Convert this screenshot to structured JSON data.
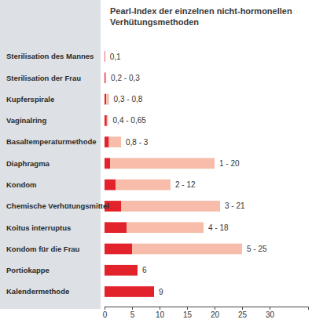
{
  "chart_data": {
    "type": "bar",
    "orientation": "horizontal",
    "title": "Pearl-Index der einzelnen nicht-hormonellen Verhütungsmethoden",
    "categories": [
      "Sterilisation des Mannes",
      "Sterilisation der Frau",
      "Kupferspirale",
      "Vaginalring",
      "Basaltemperaturmethode",
      "Diaphragma",
      "Kondom",
      "Chemische Verhütungsmittel",
      "Koitus interruptus",
      "Kondom für die Frau",
      "Portiokappe",
      "Kalendermethode"
    ],
    "series": [
      {
        "color": "#e3232c",
        "values": [
          0.1,
          0.2,
          0.3,
          0.4,
          0.8,
          1,
          2,
          3,
          4,
          5,
          6,
          9
        ],
        "value_labels": [
          "0,1",
          "0,2 - 0,3",
          "0,3 - 0,8",
          "0,4 - 0,65",
          "0,8 - 3",
          "1 - 20",
          "2 - 12",
          "3 - 21",
          "4 - 18",
          "5 - 25",
          "6",
          "9"
        ]
      },
      {
        "type": "range",
        "color": "#f7bcaa",
        "values": [
          null,
          0.3,
          0.8,
          0.65,
          3,
          20,
          12,
          21,
          18,
          25,
          null,
          null
        ]
      }
    ],
    "xlim": [
      0,
      37
    ],
    "xticks": [
      0,
      5,
      10,
      15,
      20,
      25,
      30
    ],
    "data_labels": true,
    "grid": false
  }
}
